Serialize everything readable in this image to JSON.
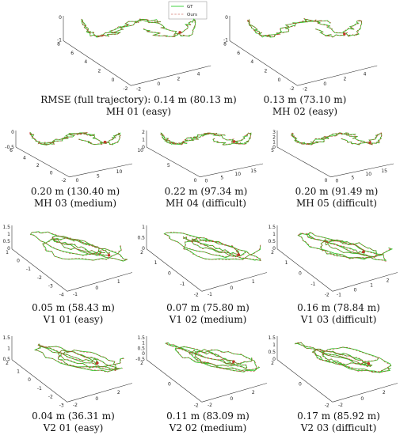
{
  "legend": {
    "entries": [
      {
        "label": "GT",
        "color": "#2ecc2e",
        "style": "solid"
      },
      {
        "label": "Ours",
        "color": "#c0392b",
        "style": "dashed"
      }
    ]
  },
  "colors": {
    "gt": "#2ecc2e",
    "ours": "#c0392b",
    "marker_start": "#c0392b",
    "marker_end": "#8b4513"
  },
  "chart_data": [
    {
      "type": "line",
      "id": "mh01",
      "caption_line1": "RMSE (full trajectory): 0.14 m (80.13 m)",
      "caption_line2": "MH 01 (easy)",
      "z_ticks": [
        "0",
        "-1"
      ],
      "y_ticks": [
        "8",
        "6",
        "4",
        "2",
        "0",
        "-2"
      ],
      "x_ticks": [
        "-2",
        "0",
        "2",
        "4"
      ]
    },
    {
      "type": "line",
      "id": "mh02",
      "caption_line1": "0.13 m (73.10 m)",
      "caption_line2": "MH 02 (easy)",
      "z_ticks": [
        "0",
        "-1"
      ],
      "y_ticks": [
        "8",
        "6",
        "4",
        "2",
        "0",
        "-2"
      ],
      "x_ticks": [
        "-2",
        "0",
        "2",
        "4"
      ]
    },
    {
      "type": "line",
      "id": "mh03",
      "caption_line1": "0.20 m (130.40 m)",
      "caption_line2": "MH 03 (medium)",
      "z_ticks": [
        "0",
        "-0.5"
      ],
      "y_ticks": [
        "6",
        "4",
        "2",
        "0",
        "-2"
      ],
      "x_ticks": [
        "0",
        "5",
        "10"
      ]
    },
    {
      "type": "line",
      "id": "mh04",
      "caption_line1": "0.22 m (97.34 m)",
      "caption_line2": "MH 04 (difficult)",
      "z_ticks": [
        "2",
        "1",
        "0"
      ],
      "y_ticks": [
        "10",
        "5",
        "0"
      ],
      "x_ticks": [
        "0",
        "5",
        "10",
        "15"
      ]
    },
    {
      "type": "line",
      "id": "mh05",
      "caption_line1": "0.20 m (91.49 m)",
      "caption_line2": "MH 05 (difficult)",
      "z_ticks": [
        "3",
        "2",
        "1",
        "0"
      ],
      "y_ticks": [
        "5",
        "0"
      ],
      "x_ticks": [
        "0",
        "5",
        "10",
        "15"
      ]
    },
    {
      "type": "line",
      "id": "v101",
      "caption_line1": "0.05 m (58.43 m)",
      "caption_line2": "V1 01 (easy)",
      "z_ticks": [
        "1.5",
        "1",
        "0.5",
        "0"
      ],
      "y_ticks": [
        "1",
        "0",
        "-1",
        "-2",
        "-3",
        "-4"
      ],
      "x_ticks": [
        "-1",
        "0",
        "1"
      ]
    },
    {
      "type": "line",
      "id": "v102",
      "caption_line1": "0.07 m (75.80 m)",
      "caption_line2": "V1 02 (medium)",
      "z_ticks": [
        "1",
        "0.5",
        "0"
      ],
      "y_ticks": [
        "2",
        "1",
        "0",
        "-1",
        "-2"
      ],
      "x_ticks": [
        "-1",
        "0",
        "1"
      ]
    },
    {
      "type": "line",
      "id": "v103",
      "caption_line1": "0.16 m (78.84 m)",
      "caption_line2": "V1 03 (difficult)",
      "z_ticks": [
        "1.5",
        "1",
        "0.5",
        "0"
      ],
      "y_ticks": [
        "2",
        "1",
        "0",
        "-1",
        "-2"
      ],
      "x_ticks": [
        "-1",
        "0",
        "1",
        "2"
      ]
    },
    {
      "type": "line",
      "id": "v201",
      "caption_line1": "0.04 m (36.31 m)",
      "caption_line2": "V2 01 (easy)",
      "z_ticks": [
        "1.5",
        "1",
        "0.5"
      ],
      "y_ticks": [
        "2",
        "1",
        "0",
        "-1",
        "-2",
        "-3"
      ],
      "x_ticks": [
        "-2",
        "0",
        "2"
      ]
    },
    {
      "type": "line",
      "id": "v202",
      "caption_line1": "0.11 m (83.09 m)",
      "caption_line2": "V2 02 (medium)",
      "z_ticks": [
        "1.5",
        "1",
        "0.5",
        "0",
        "-0.5"
      ],
      "y_ticks": [
        "2",
        "0",
        "-2"
      ],
      "x_ticks": [
        "-2",
        "0",
        "2"
      ]
    },
    {
      "type": "line",
      "id": "v203",
      "caption_line1": "0.17 m (85.92 m)",
      "caption_line2": "V2 03 (difficult)",
      "z_ticks": [
        "1.5",
        "1",
        "0.5",
        "0"
      ],
      "y_ticks": [
        "2",
        "0",
        "-2"
      ],
      "x_ticks": [
        "-2",
        "0",
        "2"
      ]
    }
  ]
}
